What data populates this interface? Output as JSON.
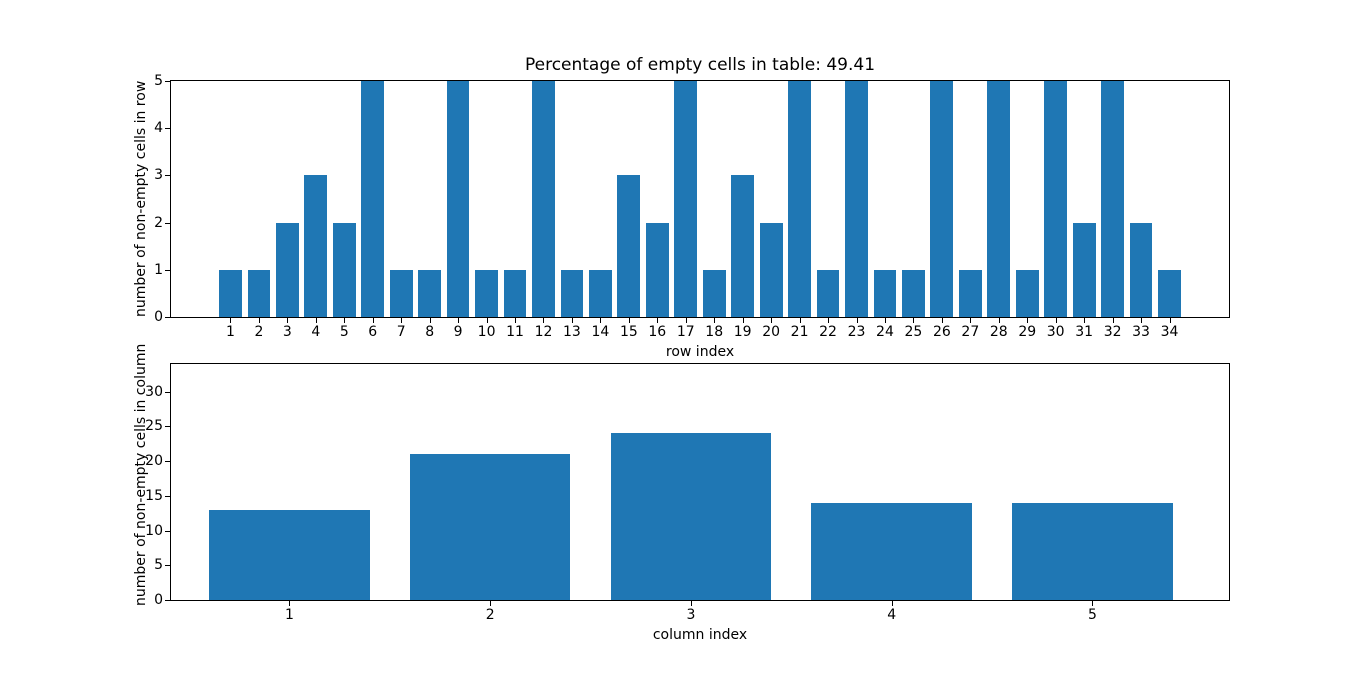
{
  "figure": {
    "background": "#ffffff",
    "bar_color": "#1f77b4"
  },
  "chart_data": [
    {
      "type": "bar",
      "title": "Percentage of empty cells in table: 49.41",
      "xlabel": "row index",
      "ylabel": "number of non-empty cells in row",
      "categories": [
        1,
        2,
        3,
        4,
        5,
        6,
        7,
        8,
        9,
        10,
        11,
        12,
        13,
        14,
        15,
        16,
        17,
        18,
        19,
        20,
        21,
        22,
        23,
        24,
        25,
        26,
        27,
        28,
        29,
        30,
        31,
        32,
        33,
        34
      ],
      "values": [
        1,
        1,
        2,
        3,
        2,
        5,
        1,
        1,
        5,
        1,
        1,
        5,
        1,
        1,
        3,
        2,
        5,
        1,
        3,
        2,
        5,
        1,
        5,
        1,
        1,
        5,
        1,
        5,
        1,
        5,
        2,
        5,
        2,
        1
      ],
      "yticks": [
        0,
        1,
        2,
        3,
        4,
        5
      ],
      "ylim": [
        0,
        5
      ],
      "xlim": [
        -1.09,
        36.09
      ],
      "bar_width_units": 0.8,
      "bar_color": "#1f77b4",
      "grid": false,
      "legend": null
    },
    {
      "type": "bar",
      "title": "",
      "xlabel": "column index",
      "ylabel": "number of non-empty cells in column",
      "categories": [
        1,
        2,
        3,
        4,
        5
      ],
      "values": [
        13,
        21,
        24,
        14,
        14
      ],
      "yticks": [
        0,
        5,
        10,
        15,
        20,
        25,
        30
      ],
      "ylim": [
        0,
        34
      ],
      "xlim": [
        0.41,
        5.68
      ],
      "bar_width_units": 0.8,
      "bar_color": "#1f77b4",
      "grid": false,
      "legend": null
    }
  ]
}
